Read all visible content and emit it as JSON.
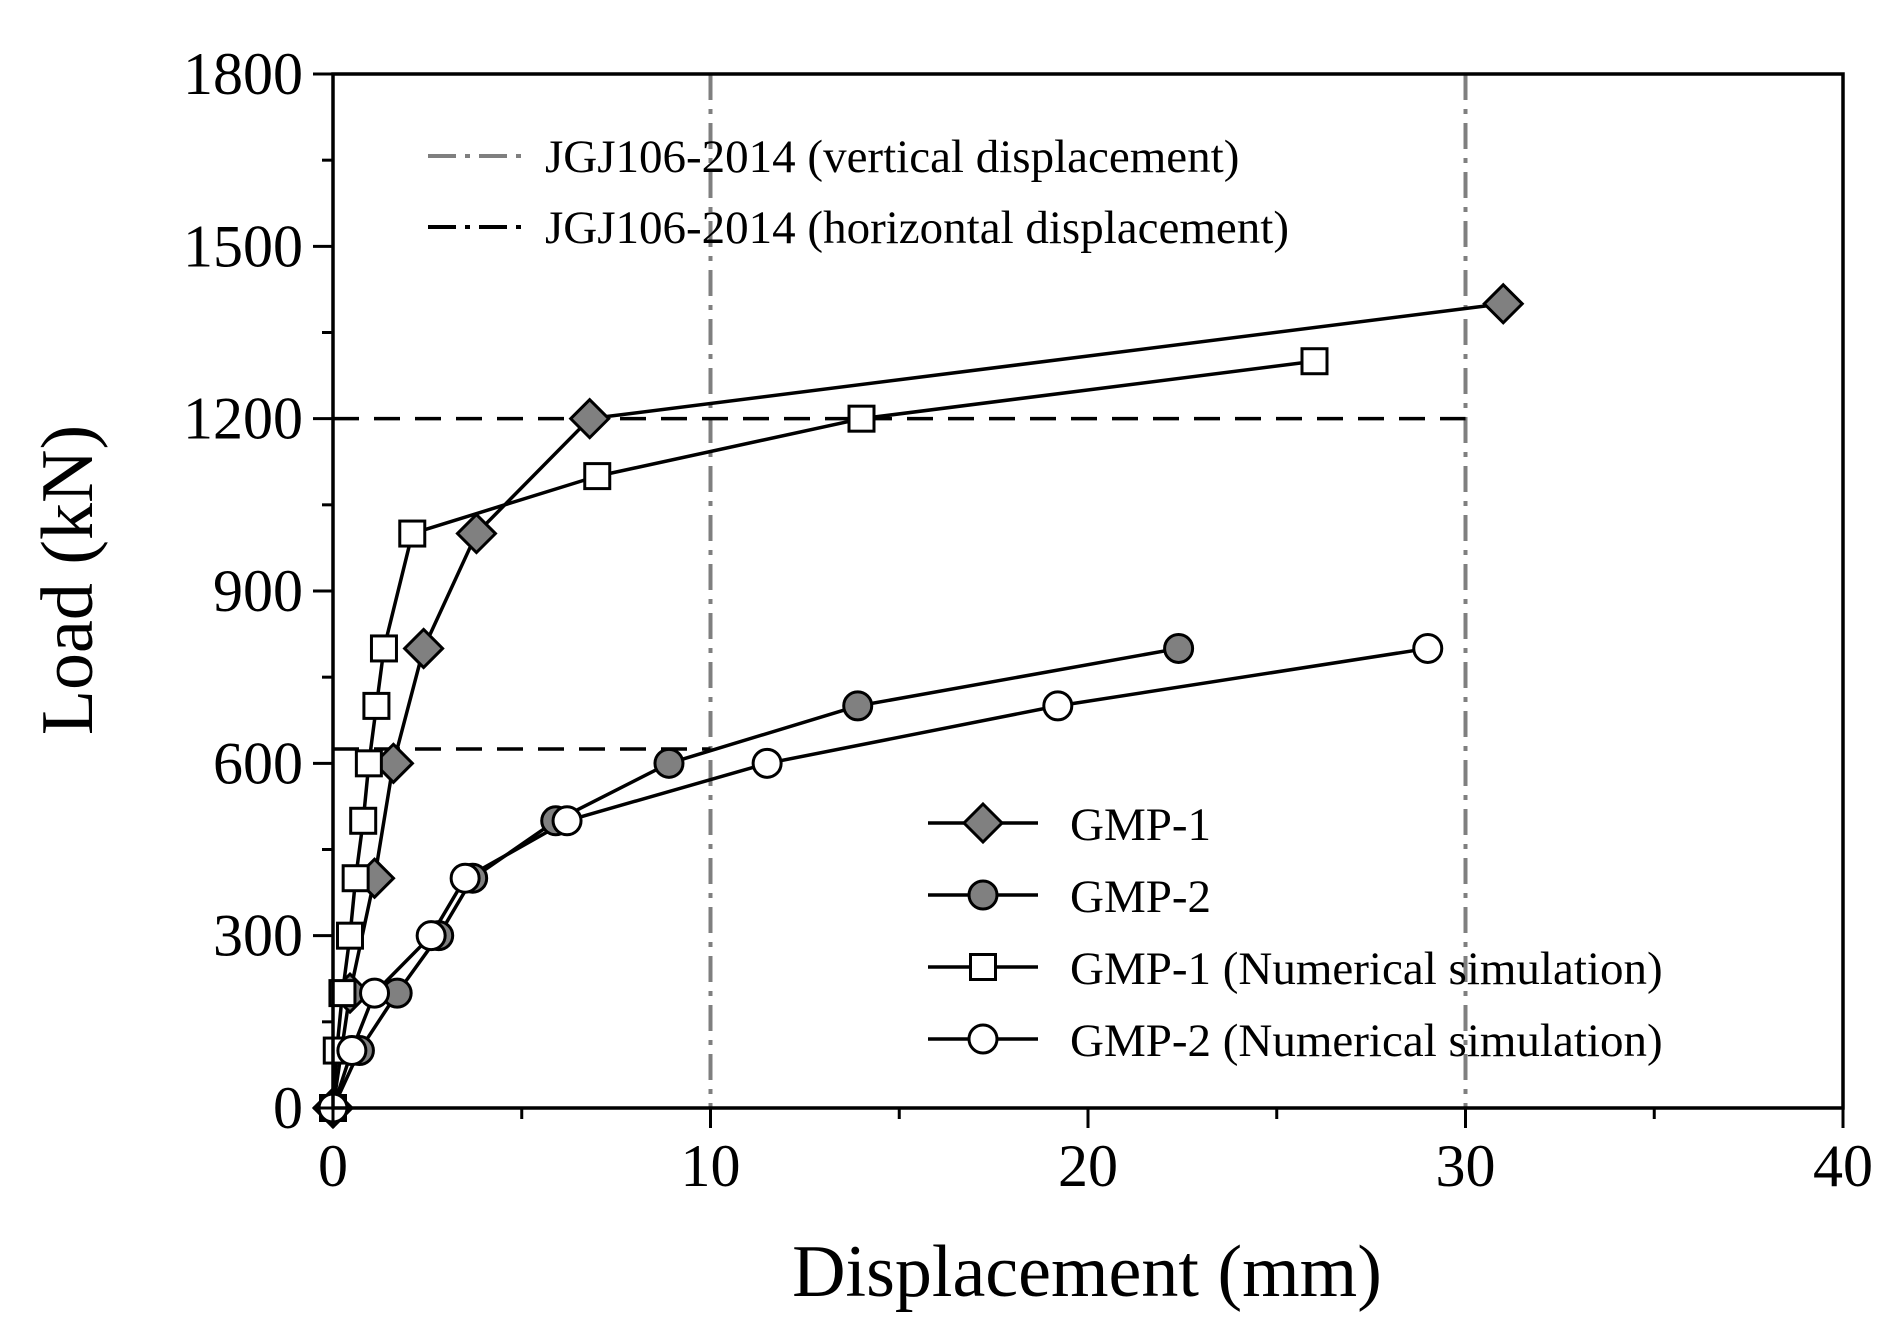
{
  "chart_data": {
    "type": "line",
    "title": "",
    "xlabel": "Displacement (mm)",
    "ylabel": "Load (kN)",
    "xlim": [
      0,
      40
    ],
    "ylim": [
      0,
      1800
    ],
    "xticks": [
      0,
      10,
      20,
      30,
      40
    ],
    "yticks": [
      0,
      300,
      600,
      900,
      1200,
      1500,
      1800
    ],
    "x_minor_step": 5,
    "y_minor_step": 150,
    "grid": false,
    "series": [
      {
        "name": "GMP-1",
        "marker": "diamond",
        "fill": "#808080",
        "points": [
          [
            0,
            0
          ],
          [
            0.45,
            200
          ],
          [
            1.1,
            400
          ],
          [
            1.6,
            600
          ],
          [
            2.4,
            800
          ],
          [
            3.8,
            1000
          ],
          [
            6.8,
            1200
          ],
          [
            31,
            1400
          ]
        ]
      },
      {
        "name": "GMP-2",
        "marker": "circle",
        "fill": "#808080",
        "points": [
          [
            0,
            0
          ],
          [
            0.7,
            100
          ],
          [
            1.7,
            200
          ],
          [
            2.8,
            300
          ],
          [
            3.7,
            400
          ],
          [
            5.9,
            500
          ],
          [
            8.9,
            600
          ],
          [
            13.9,
            700
          ],
          [
            22.4,
            800
          ]
        ]
      },
      {
        "name": "GMP-1 (Numerical simulation)",
        "marker": "square",
        "fill": "#ffffff",
        "points": [
          [
            0,
            0
          ],
          [
            0.1,
            100
          ],
          [
            0.25,
            200
          ],
          [
            0.45,
            300
          ],
          [
            0.6,
            400
          ],
          [
            0.8,
            500
          ],
          [
            0.95,
            600
          ],
          [
            1.15,
            700
          ],
          [
            1.35,
            800
          ],
          [
            2.1,
            1000
          ],
          [
            7,
            1100
          ],
          [
            14,
            1200
          ],
          [
            26,
            1300
          ]
        ]
      },
      {
        "name": "GMP-2 (Numerical simulation)",
        "marker": "circle",
        "fill": "#ffffff",
        "points": [
          [
            0,
            0
          ],
          [
            0.5,
            100
          ],
          [
            1.1,
            200
          ],
          [
            2.6,
            300
          ],
          [
            3.5,
            400
          ],
          [
            6.2,
            500
          ],
          [
            11.5,
            600
          ],
          [
            19.2,
            700
          ],
          [
            29,
            800
          ]
        ]
      }
    ],
    "reference_lines": [
      {
        "name": "JGJ106-2014 (vertical displacement)",
        "orientation": "vertical",
        "values": [
          10,
          30
        ],
        "color": "#7f7f7f",
        "dash": "dash-dot"
      },
      {
        "name": "JGJ106-2014 (horizontal displacement)",
        "orientation": "horizontal",
        "segments": [
          {
            "y": 1200,
            "x_from": 0,
            "x_to": 30
          },
          {
            "y": 625,
            "x_from": 0,
            "x_to": 10
          }
        ],
        "color": "#000000",
        "dash": "dashed"
      }
    ],
    "legend_ref_placement": "top-left",
    "legend_series_placement": "bottom-right"
  }
}
